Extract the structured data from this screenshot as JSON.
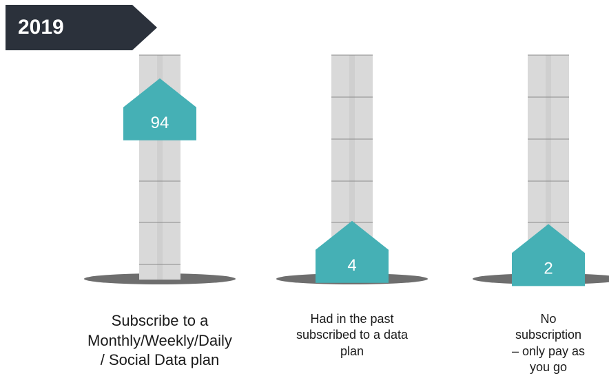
{
  "chart_data": {
    "type": "gauge",
    "title": "2019",
    "categories": [
      "Subscribe to a Monthly/Weekly/Daily / Social Data plan",
      "Had in the past subscribed to a data plan",
      "No subscription – only pay as you go"
    ],
    "values": [
      94,
      4,
      2
    ],
    "color": "#45b0b5",
    "ylim": [
      0,
      100
    ]
  }
}
